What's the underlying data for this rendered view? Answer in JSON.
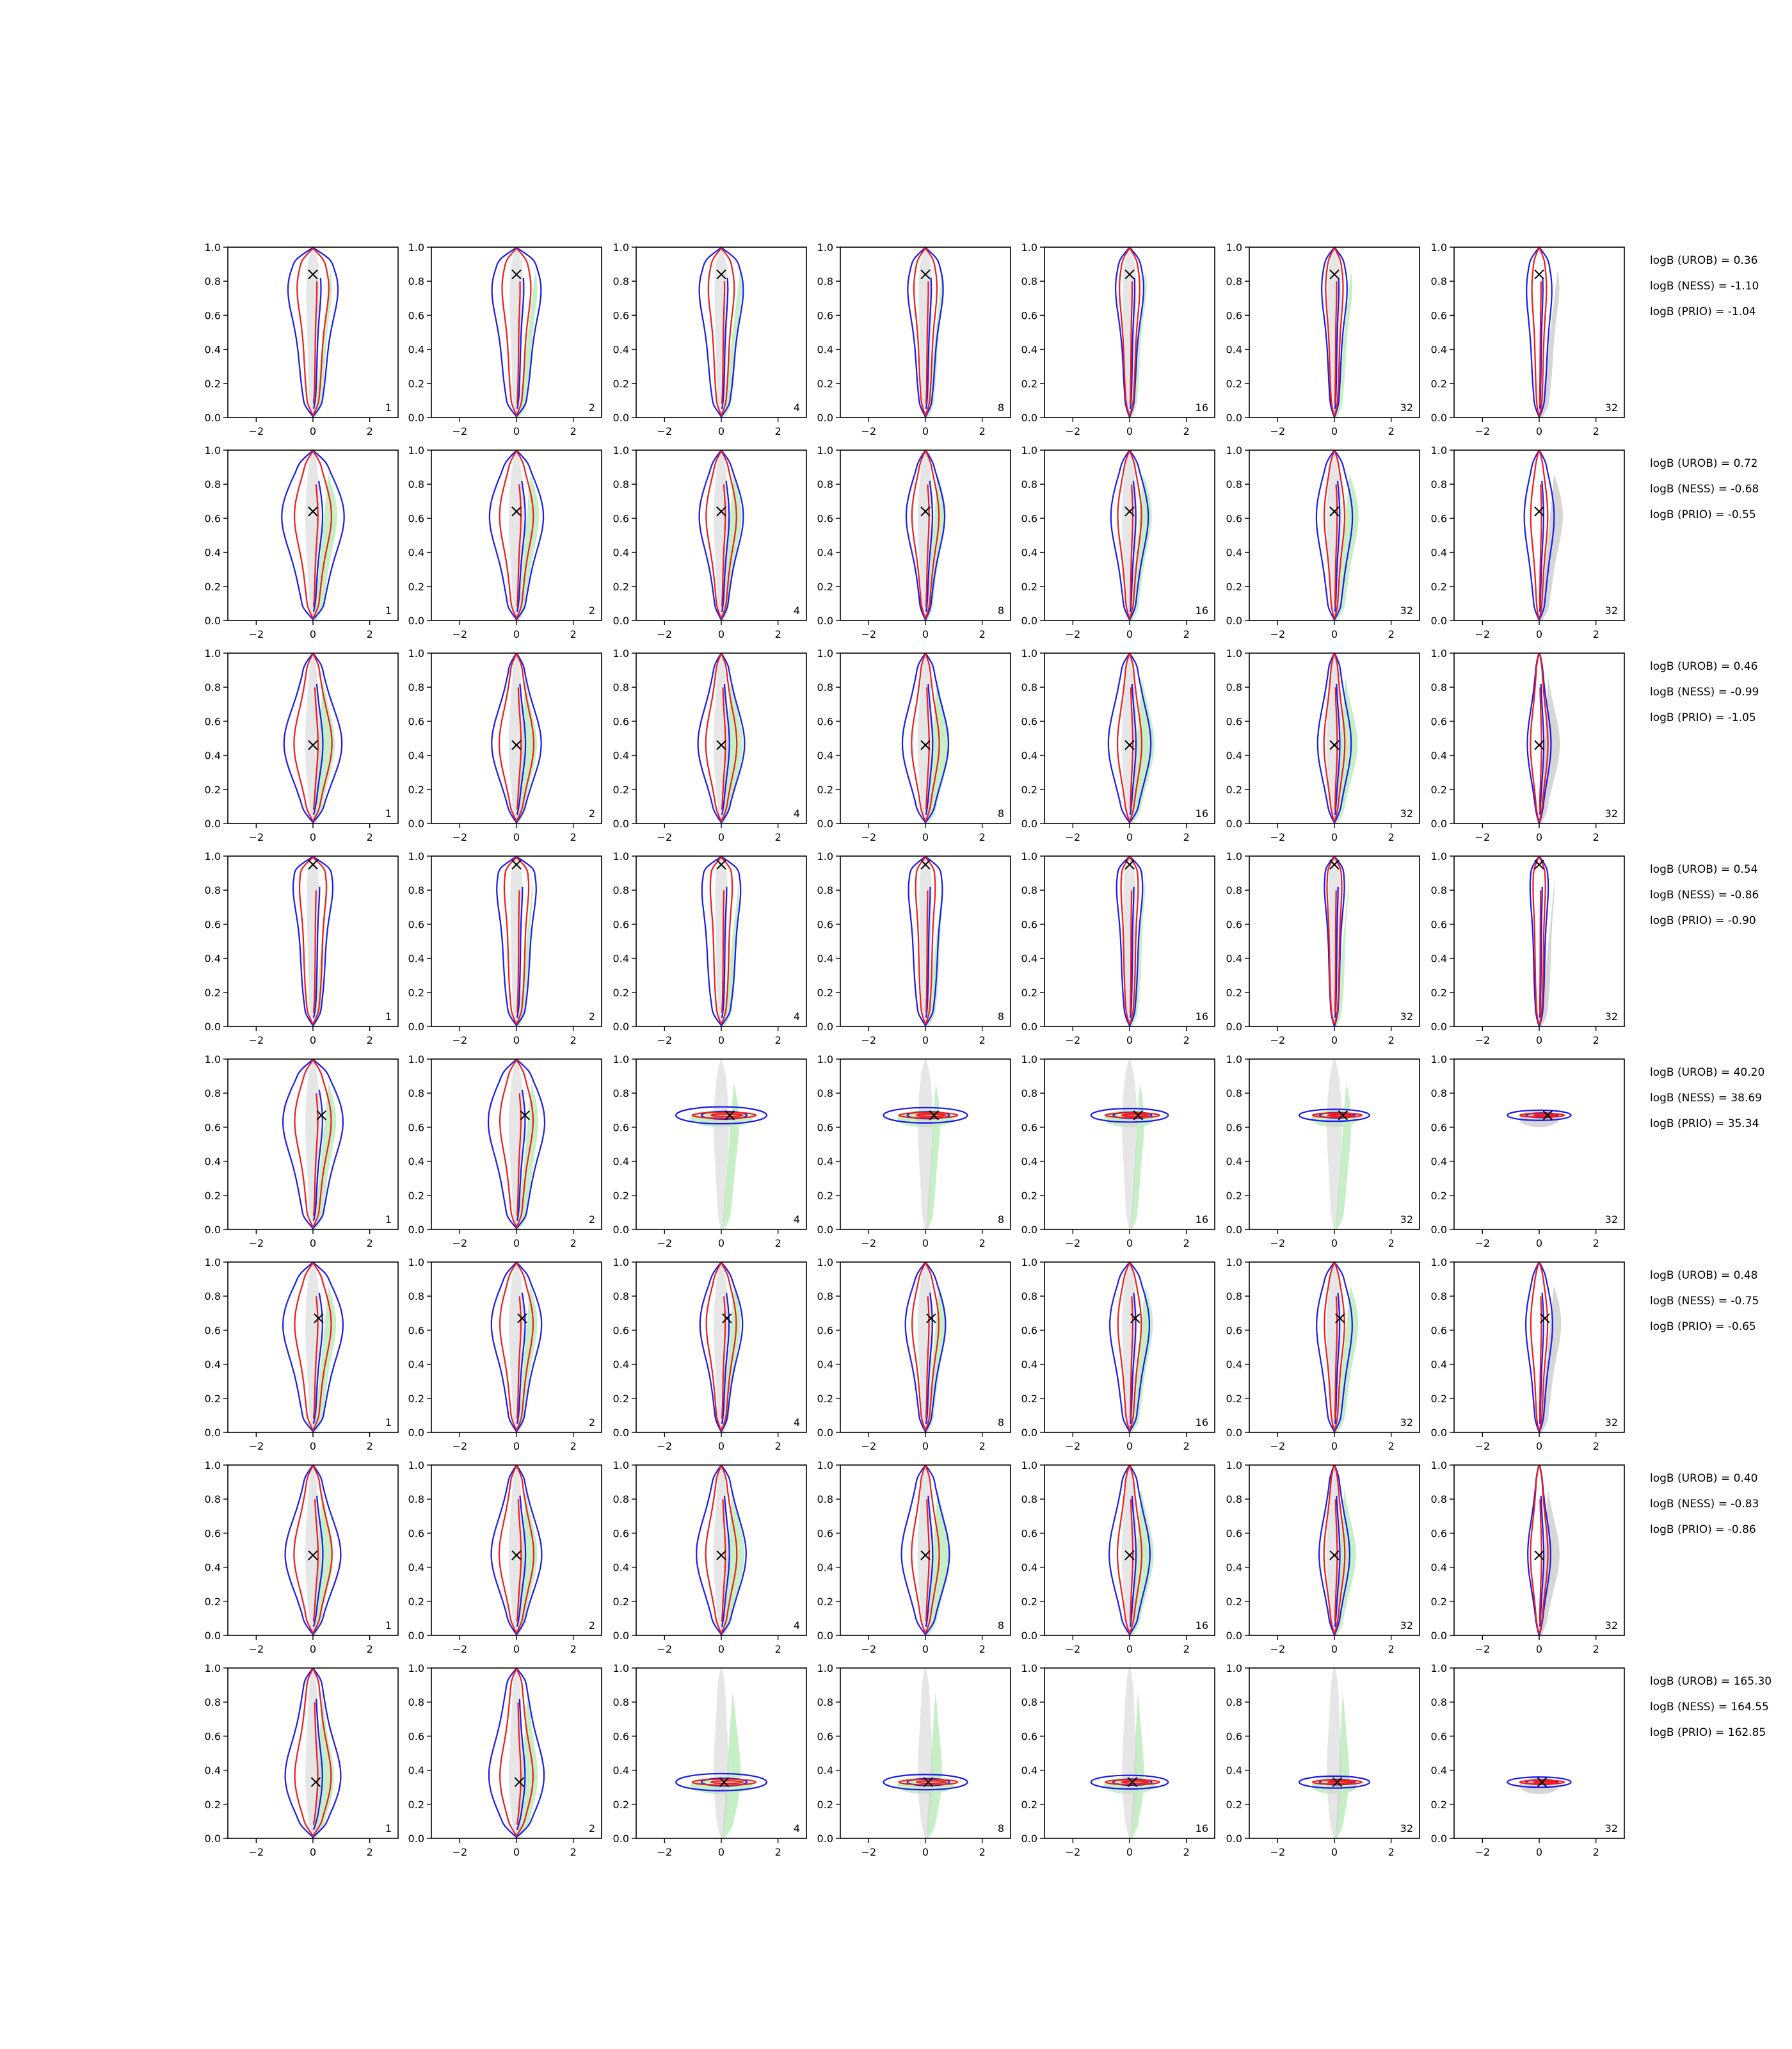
{
  "chart_data": {
    "type": "contour",
    "grid": {
      "rows": 8,
      "cols": 7,
      "grid_lines": false
    },
    "axes": {
      "xlim": [
        -3,
        3
      ],
      "ylim": [
        0,
        1
      ],
      "xticks": [
        -2,
        0,
        2
      ],
      "yticks": [
        0.0,
        0.2,
        0.4,
        0.6,
        0.8,
        1.0
      ],
      "xtick_labels": [
        "−2",
        "0",
        "2"
      ],
      "ytick_labels": [
        "0.0",
        "0.2",
        "0.4",
        "0.6",
        "0.8",
        "1.0"
      ]
    },
    "panel_labels": [
      "1",
      "2",
      "4",
      "8",
      "16",
      "32",
      "32"
    ],
    "colors": {
      "fill": "#c6efc6",
      "gray_fill": "#d6d6d6",
      "red": "#ee1c1c",
      "blue": "#1a1af0",
      "marker": "#000000"
    },
    "rows": [
      {
        "marker": {
          "x": 0.0,
          "y": 0.84
        },
        "type": "elongated",
        "logB": [
          "logB (UROB) = 0.36",
          "logB (NESS) = -1.10",
          "logB (PRIO) = -1.04"
        ]
      },
      {
        "marker": {
          "x": 0.0,
          "y": 0.64
        },
        "type": "elongated",
        "logB": [
          "logB (UROB) = 0.72",
          "logB (NESS) = -0.68",
          "logB (PRIO) = -0.55"
        ]
      },
      {
        "marker": {
          "x": 0.0,
          "y": 0.46
        },
        "type": "elongated",
        "logB": [
          "logB (UROB) = 0.46",
          "logB (NESS) = -0.99",
          "logB (PRIO) = -1.05"
        ]
      },
      {
        "marker": {
          "x": 0.0,
          "y": 0.95
        },
        "type": "elongated",
        "logB": [
          "logB (UROB) = 0.54",
          "logB (NESS) = -0.86",
          "logB (PRIO) = -0.90"
        ]
      },
      {
        "marker": {
          "x": 0.3,
          "y": 0.67
        },
        "type": "flattening",
        "logB": [
          "logB (UROB) = 40.20",
          "logB (NESS) = 38.69",
          "logB (PRIO) = 35.34"
        ]
      },
      {
        "marker": {
          "x": 0.2,
          "y": 0.67
        },
        "type": "elongated",
        "logB": [
          "logB (UROB) = 0.48",
          "logB (NESS) = -0.75",
          "logB (PRIO) = -0.65"
        ]
      },
      {
        "marker": {
          "x": 0.0,
          "y": 0.47
        },
        "type": "elongated",
        "logB": [
          "logB (UROB) = 0.40",
          "logB (NESS) = -0.83",
          "logB (PRIO) = -0.86"
        ]
      },
      {
        "marker": {
          "x": 0.1,
          "y": 0.33
        },
        "type": "flattening",
        "logB": [
          "logB (UROB) = 165.30",
          "logB (NESS) = 164.55",
          "logB (PRIO) = 162.85"
        ]
      }
    ]
  }
}
